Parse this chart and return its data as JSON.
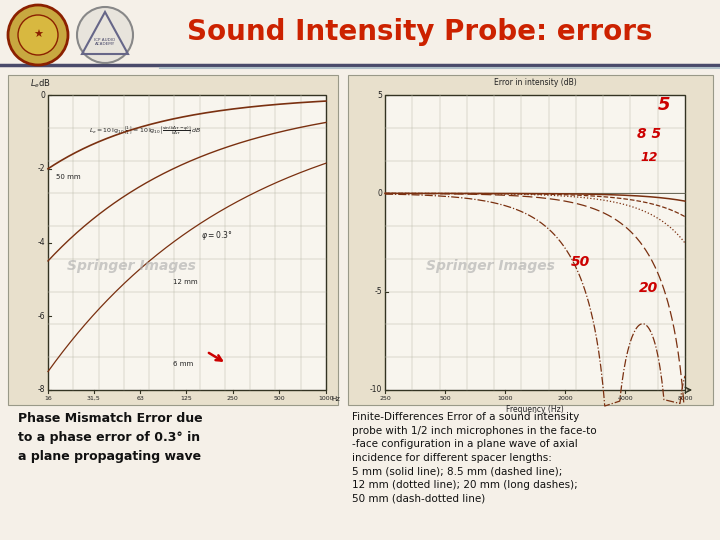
{
  "title": "Sound Intensity Probe: errors",
  "title_color": "#cc2200",
  "title_fontsize": 20,
  "bg_color": "#f5f0e8",
  "header_line1_color": "#4a4a6a",
  "header_line2_color": "#b0b8c0",
  "left_caption": "Phase Mismatch Error due\nto a phase error of 0.3° in\na plane propagating wave",
  "right_caption": "Finite-Differences Error of a sound intensity\nprobe with 1/2 inch microphones in the face-to\n-face configuration in a plane wave of axial\nincidence for different spacer lengths:\n5 mm (solid line); 8.5 mm (dashed line);\n12 mm (dotted line); 20 mm (long dashes);\n50 mm (dash-dotted line)",
  "box_bg": "#e8e0cc",
  "chart_bg": "#f8f5ee",
  "grid_color": "#bbbbaa",
  "curve_color": "#7a3010",
  "red_label_color": "#cc0000",
  "watermark_color": "#aaaaaa",
  "arrow_color": "#cc0000",
  "separator_color1": "#4a4a6a",
  "separator_color2": "#b0c0c8"
}
